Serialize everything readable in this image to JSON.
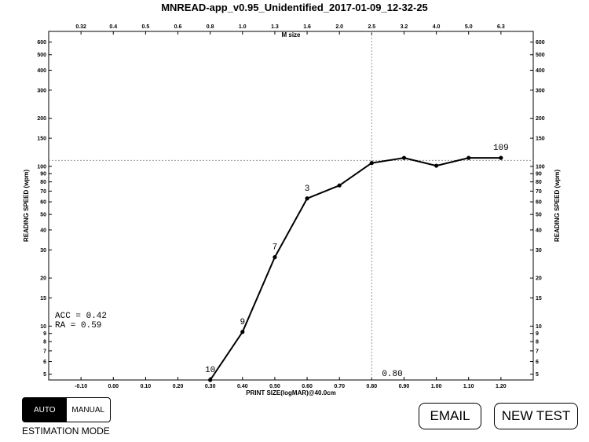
{
  "chart_data": {
    "type": "line",
    "title": "MNREAD-app_v0.95_Unidentified_2017-01-09_12-32-25",
    "xlabel": "PRINT SIZE(logMAR)@40.0cm",
    "ylabel": "READING SPEED (wpm)",
    "top_axis_label": "M size",
    "x_scale": "linear",
    "y_scale": "log",
    "xlim": [
      -0.2,
      1.3
    ],
    "ylim": [
      4.6,
      700
    ],
    "x_ticks": [
      -0.1,
      0.0,
      0.1,
      0.2,
      0.3,
      0.4,
      0.5,
      0.6,
      0.7,
      0.8,
      0.9,
      1.0,
      1.1,
      1.2
    ],
    "x_tick_labels": [
      "-0.10",
      "0.00",
      "0.10",
      "0.20",
      "0.30",
      "0.40",
      "0.50",
      "0.60",
      "0.70",
      "0.80",
      "0.90",
      "1.00",
      "1.10",
      "1.20"
    ],
    "top_ticks": [
      "0.32",
      "0.4",
      "0.5",
      "0.6",
      "0.8",
      "1.0",
      "1.3",
      "1.6",
      "2.0",
      "2.5",
      "3.2",
      "4.0",
      "5.0",
      "6.3"
    ],
    "y_ticks": [
      5,
      6,
      7,
      8,
      9,
      10,
      15,
      20,
      30,
      40,
      50,
      60,
      70,
      80,
      90,
      100,
      150,
      200,
      300,
      400,
      500,
      600
    ],
    "y_tick_labels": [
      "5",
      "6",
      "7",
      "8",
      "9",
      "10",
      "15",
      "20",
      "30",
      "40",
      "50",
      "60",
      "70",
      "80",
      "90",
      "100",
      "150",
      "200",
      "300",
      "400",
      "500",
      "600"
    ],
    "series": [
      {
        "x": [
          0.3,
          0.4,
          0.5,
          0.6,
          0.7,
          0.8,
          0.9,
          1.0,
          1.1,
          1.2
        ],
        "y": [
          4.6,
          9.2,
          27,
          63,
          76,
          105,
          113,
          101,
          113,
          113
        ]
      }
    ],
    "point_labels": [
      {
        "x": 0.3,
        "y": 4.6,
        "text": "10"
      },
      {
        "x": 0.4,
        "y": 9.2,
        "text": "9"
      },
      {
        "x": 0.5,
        "y": 27,
        "text": "7"
      },
      {
        "x": 0.6,
        "y": 63,
        "text": "3"
      },
      {
        "x": 1.2,
        "y": 113,
        "text": "109"
      }
    ],
    "reference_lines": {
      "critical_print_size": 0.8,
      "max_reading_speed": 109
    },
    "critical_print_size_label": "0.80",
    "stats": {
      "acc_label": "ACC = 0.42",
      "ra_label": "RA  = 0.59"
    },
    "grid": false,
    "colors": {
      "line": "#000000",
      "reference": "#999999"
    }
  },
  "controls": {
    "mode_auto": "AUTO",
    "mode_manual": "MANUAL",
    "mode_label": "ESTIMATION MODE",
    "email": "EMAIL",
    "new_test": "NEW TEST"
  }
}
